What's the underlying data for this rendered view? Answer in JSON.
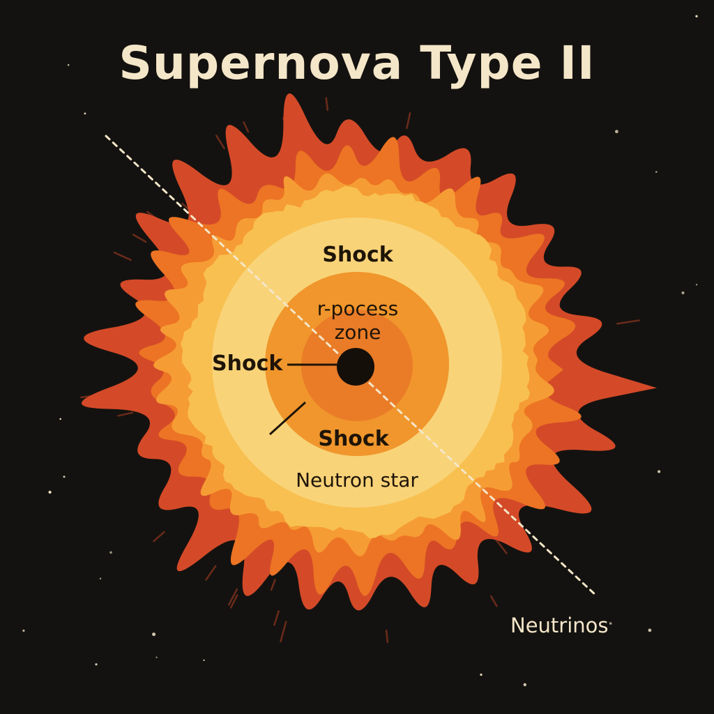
{
  "title": "Supernova Type II",
  "labels": {
    "shock_top": "Shock",
    "rprocess_line1": "r-pocess",
    "rprocess_line2": "zone",
    "shock_left": "Shock",
    "shock_bottom": "Shock",
    "neutron_star": "Neutron star",
    "neutrinos": "Neutrinos"
  },
  "colors": {
    "background": "#141210",
    "title": "#f4e6c8",
    "label_dark": "#1e1408",
    "label_light": "#f4e6c8",
    "outer_rays": "#d44a28",
    "mid_rays": "#ec7424",
    "inner_rays": "#f69c34",
    "shock_shell": "#f8c050",
    "pale_shell": "#f9d378",
    "rprocess_ring": "#f0962c",
    "inner_zone": "#ea7c28",
    "neutron_star": "#150f0a",
    "neutrino_beam": "#f4e6c8"
  }
}
